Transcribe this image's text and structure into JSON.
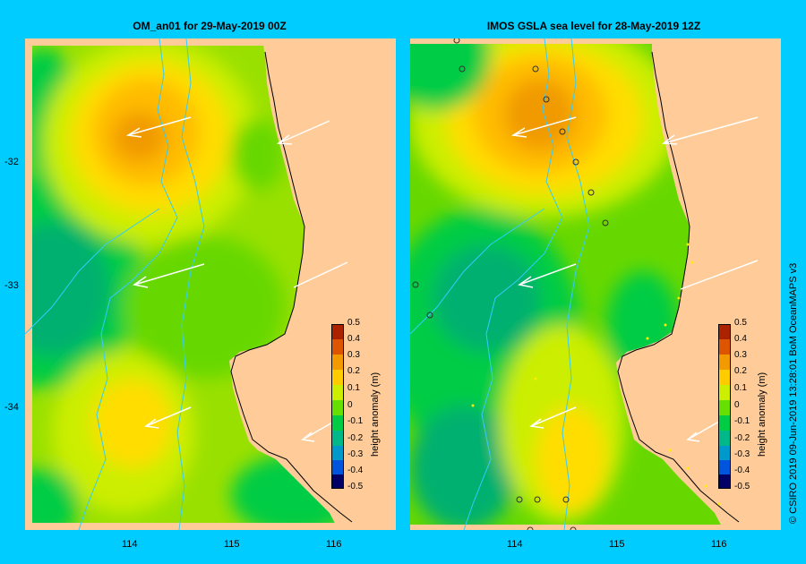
{
  "panels": [
    {
      "title": "OM_an01  for 29-May-2019 00Z"
    },
    {
      "title": "IMOS  GSLA sea level   for 28-May-2019 12Z"
    }
  ],
  "axes": {
    "lat_labels": [
      "-32",
      "-33",
      "-34"
    ],
    "lon_labels": [
      "114",
      "115",
      "116"
    ]
  },
  "colorbar": {
    "title": "height anomaly (m)",
    "ticks": [
      "0.5",
      "0.4",
      "0.3",
      "0.2",
      "0.1",
      "0",
      "-0.1",
      "-0.2",
      "-0.3",
      "-0.4",
      "-0.5"
    ],
    "range": [
      -0.5,
      0.5
    ],
    "colors": [
      "#000066",
      "#0022aa",
      "#0055dd",
      "#0099cc",
      "#00b88a",
      "#00cc44",
      "#66e000",
      "#ccee00",
      "#ffcc00",
      "#f39a00",
      "#dd5500",
      "#aa2200"
    ]
  },
  "credit": "© CSIRO 2019   09-Jun-2019 13:28:01 BoM OceanMAPS v3",
  "colors": {
    "background": "#00ccff",
    "land": "#ffcc99",
    "track": "#33ccff"
  }
}
